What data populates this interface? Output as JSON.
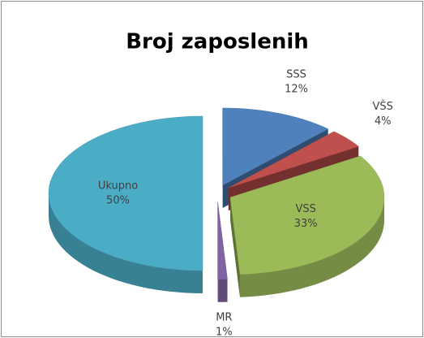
{
  "chart_data": {
    "type": "pie",
    "title": "Broj zaposlenih",
    "categories": [
      "SSS",
      "VŠS",
      "VSS",
      "MR",
      "Ukupno"
    ],
    "values": [
      12,
      4,
      33,
      1,
      50
    ],
    "value_labels": [
      "12%",
      "4%",
      "33%",
      "1%",
      "50%"
    ],
    "colors": [
      "#4f81bd",
      "#c0504d",
      "#9bbb59",
      "#8064a2",
      "#4bacc6"
    ]
  }
}
